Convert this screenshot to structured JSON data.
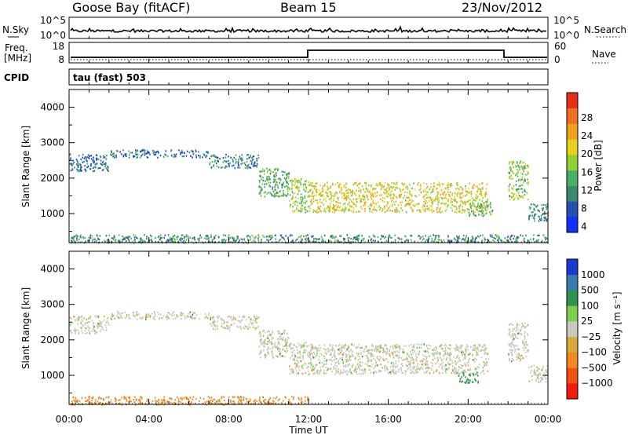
{
  "header": {
    "station": "Goose Bay (fitACF)",
    "beam": "Beam 15",
    "date": "23/Nov/2012"
  },
  "strip": {
    "nsky_label": "N.Sky",
    "nsky_ticks": [
      "10^5",
      "10^0"
    ],
    "nsearch_label": "N.Search",
    "nsearch_ticks": [
      "10^5",
      "10^0"
    ],
    "freq_label": "Freq.",
    "freq_unit": "[MHz]",
    "freq_ticks": [
      "18",
      "8"
    ],
    "nave_label": "Nave",
    "nave_ticks": [
      "60",
      "0"
    ],
    "cpid_label": "CPID",
    "cpid_value": "tau (fast) 503"
  },
  "colors": {
    "power": [
      "#1030ff",
      "#2850b0",
      "#3a8a70",
      "#48b064",
      "#90d030",
      "#e8d020",
      "#f0a020",
      "#f07020",
      "#e83018"
    ],
    "velocity": [
      "#1a3ad0",
      "#3a7ab0",
      "#2f9450",
      "#7ccf4a",
      "#c8c8c0",
      "#d8a838",
      "#f08a20",
      "#f05010",
      "#f01c10"
    ]
  },
  "chart_data": [
    {
      "type": "heatmap",
      "title": "Power",
      "ylabel": "Slant Range [km]",
      "xlabel": "",
      "x_ticks": [
        "00:00",
        "04:00",
        "08:00",
        "12:00",
        "16:00",
        "20:00",
        "00:00"
      ],
      "x_range_hours": [
        0,
        24
      ],
      "y_ticks": [
        "4000",
        "3000",
        "2000",
        "1000"
      ],
      "ylim": [
        180,
        4500
      ],
      "colorbar_label": "Power [dB]",
      "colorbar_ticks": [
        "28",
        "24",
        "20",
        "16",
        "12",
        "8",
        "4"
      ],
      "colorbar_range": [
        0,
        32
      ],
      "echo_regions": [
        {
          "t": [
            0.0,
            2.0
          ],
          "range_km": [
            2200,
            2700
          ],
          "value": 6
        },
        {
          "t": [
            2.0,
            7.0
          ],
          "range_km": [
            2600,
            2820
          ],
          "value": 6
        },
        {
          "t": [
            7.0,
            9.5
          ],
          "range_km": [
            2300,
            2700
          ],
          "value": 7
        },
        {
          "t": [
            9.5,
            11.0
          ],
          "range_km": [
            1500,
            2300
          ],
          "value": 11
        },
        {
          "t": [
            11.0,
            12.0
          ],
          "range_km": [
            1050,
            2000
          ],
          "value": 15
        },
        {
          "t": [
            12.0,
            21.0
          ],
          "range_km": [
            1050,
            1900
          ],
          "value": 18
        },
        {
          "t": [
            20.0,
            21.2
          ],
          "range_km": [
            950,
            1350
          ],
          "value": 12
        },
        {
          "t": [
            22.0,
            23.0
          ],
          "range_km": [
            1400,
            2500
          ],
          "value": 14
        },
        {
          "t": [
            23.0,
            24.0
          ],
          "range_km": [
            800,
            1300
          ],
          "value": 8
        },
        {
          "t": [
            0.0,
            24.0
          ],
          "range_km": [
            190,
            420
          ],
          "value": 9
        }
      ]
    },
    {
      "type": "heatmap",
      "title": "Velocity",
      "ylabel": "Slant Range [km]",
      "xlabel": "Time UT",
      "x_ticks": [
        "00:00",
        "04:00",
        "08:00",
        "12:00",
        "16:00",
        "20:00",
        "00:00"
      ],
      "x_range_hours": [
        0,
        24
      ],
      "y_ticks": [
        "4000",
        "3000",
        "2000",
        "1000"
      ],
      "ylim": [
        180,
        4500
      ],
      "colorbar_label": "Velocity [m s⁻¹]",
      "colorbar_ticks": [
        "1000",
        "500",
        "100",
        "25",
        "−25",
        "−100",
        "−500",
        "−1000"
      ],
      "echo_regions": [
        {
          "t": [
            0.0,
            2.0
          ],
          "range_km": [
            2200,
            2700
          ],
          "value": 0
        },
        {
          "t": [
            2.0,
            7.0
          ],
          "range_km": [
            2600,
            2820
          ],
          "value": 0
        },
        {
          "t": [
            7.0,
            9.5
          ],
          "range_km": [
            2300,
            2700
          ],
          "value": 0
        },
        {
          "t": [
            9.5,
            11.0
          ],
          "range_km": [
            1500,
            2300
          ],
          "value": 0
        },
        {
          "t": [
            11.0,
            12.0
          ],
          "range_km": [
            1050,
            2000
          ],
          "value": 0
        },
        {
          "t": [
            12.0,
            21.0
          ],
          "range_km": [
            1050,
            1900
          ],
          "value": 0
        },
        {
          "t": [
            19.5,
            20.5
          ],
          "range_km": [
            800,
            1100
          ],
          "value": 150
        },
        {
          "t": [
            22.0,
            23.0
          ],
          "range_km": [
            1400,
            2500
          ],
          "value": 0
        },
        {
          "t": [
            23.0,
            24.0
          ],
          "range_km": [
            800,
            1300
          ],
          "value": 0
        },
        {
          "t": [
            0.0,
            12.0
          ],
          "range_km": [
            190,
            420
          ],
          "value": -150
        }
      ]
    }
  ]
}
